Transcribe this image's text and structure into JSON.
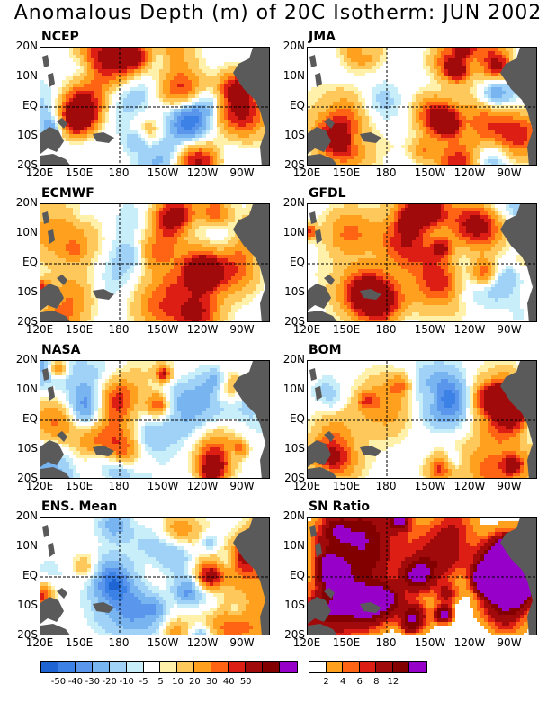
{
  "title": "Anomalous Depth (m) of 20C Isotherm: JUN 2002",
  "lat_labels": [
    "20N",
    "10N",
    "EQ",
    "10S",
    "20S"
  ],
  "lon_labels": [
    "120E",
    "150E",
    "180",
    "150W",
    "120W",
    "90W"
  ],
  "panels": [
    {
      "label": "NCEP"
    },
    {
      "label": "JMA"
    },
    {
      "label": "ECMWF"
    },
    {
      "label": "GFDL"
    },
    {
      "label": "NASA"
    },
    {
      "label": "BOM"
    },
    {
      "label": "ENS. Mean"
    },
    {
      "label": "SN Ratio"
    }
  ],
  "colorbar_depth": {
    "colors": [
      "#1e64d2",
      "#3c82e6",
      "#5a96ec",
      "#78b4f0",
      "#a0d2f8",
      "#c8eefa",
      "#ffffff",
      "#fff0aa",
      "#ffc85a",
      "#ffa01e",
      "#ff6414",
      "#dc1e14",
      "#a00a0a",
      "#820000",
      "#9600c8"
    ],
    "ticks": [
      "-50",
      "-40",
      "-30",
      "-20",
      "-10",
      "-5",
      "5",
      "10",
      "20",
      "30",
      "40",
      "50"
    ]
  },
  "colorbar_sn": {
    "colors": [
      "#ffffff",
      "#ffa01e",
      "#ff6414",
      "#dc1e14",
      "#a00a0a",
      "#820000",
      "#9600c8"
    ],
    "ticks": [
      "2",
      "4",
      "6",
      "8",
      "12"
    ]
  },
  "colors": {
    "land": "#5a5a5a",
    "frame": "#000000"
  }
}
